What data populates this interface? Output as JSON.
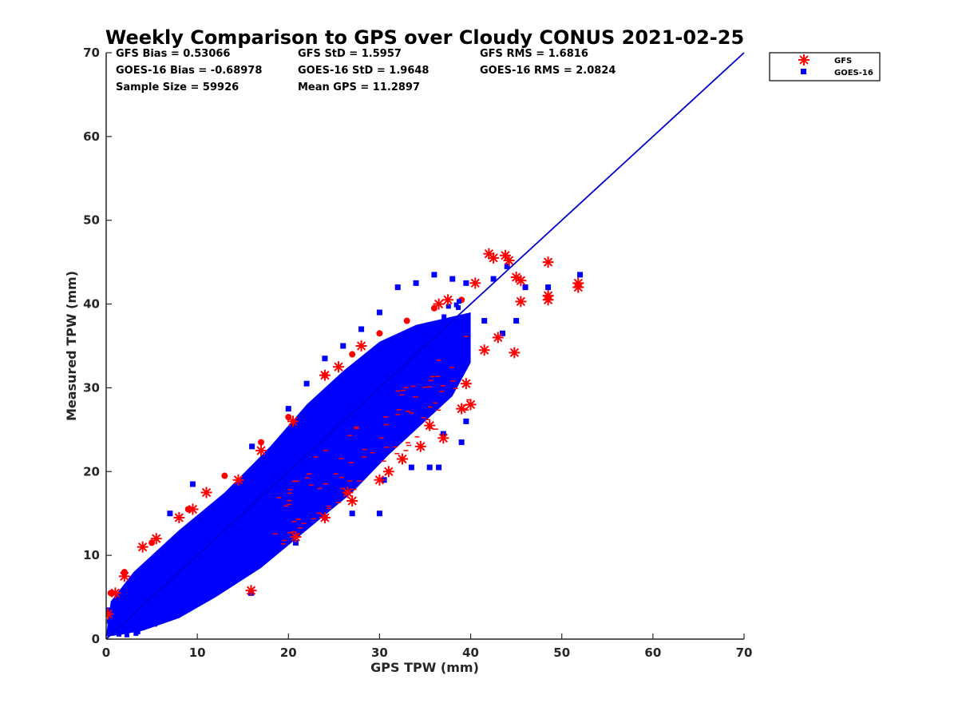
{
  "chart_data": {
    "type": "scatter",
    "title": "Weekly Comparison to GPS over Cloudy CONUS 2021-02-25",
    "xlabel": "GPS TPW (mm)",
    "ylabel": "Measured TPW (mm)",
    "xlim": [
      0,
      70
    ],
    "ylim": [
      0,
      70
    ],
    "xticks": [
      0,
      10,
      20,
      30,
      40,
      50,
      60,
      70
    ],
    "yticks": [
      0,
      10,
      20,
      30,
      40,
      50,
      60,
      70
    ],
    "grid": false,
    "legend_position": "outside-top-right",
    "stats": [
      [
        "GFS Bias = 0.53066",
        "GFS StD = 1.5957",
        "GFS RMS = 1.6816"
      ],
      [
        "GOES-16 Bias = -0.68978",
        "GOES-16 StD = 1.9648",
        "GOES-16 RMS = 2.0824"
      ],
      [
        "Sample Size = 59926",
        "Mean GPS = 11.2897",
        ""
      ]
    ],
    "one_to_one_line": {
      "x": [
        0,
        70
      ],
      "y": [
        0,
        70
      ],
      "color": "#0000cc"
    },
    "series": [
      {
        "name": "GFS",
        "marker": "asterisk",
        "color": "#ff0000",
        "outliers": [
          [
            42.0,
            46.0
          ],
          [
            42.5,
            45.5
          ],
          [
            43.8,
            45.8
          ],
          [
            44.2,
            45.2
          ],
          [
            48.5,
            45.0
          ],
          [
            51.8,
            42.5
          ],
          [
            51.8,
            42.0
          ],
          [
            48.5,
            41.0
          ],
          [
            48.5,
            40.5
          ],
          [
            45.5,
            40.3
          ],
          [
            45.0,
            43.2
          ],
          [
            45.5,
            42.8
          ],
          [
            44.8,
            34.2
          ],
          [
            41.5,
            34.5
          ],
          [
            43.0,
            36.0
          ],
          [
            39.5,
            30.5
          ],
          [
            40.0,
            28.0
          ],
          [
            39.0,
            27.5
          ],
          [
            35.5,
            25.5
          ],
          [
            37.0,
            24.0
          ],
          [
            34.5,
            23.0
          ],
          [
            32.5,
            21.5
          ],
          [
            31.0,
            20.0
          ],
          [
            30.0,
            19.0
          ],
          [
            27.0,
            16.5
          ],
          [
            26.5,
            17.5
          ],
          [
            24.0,
            14.5
          ],
          [
            20.8,
            12.2
          ],
          [
            15.9,
            5.8
          ],
          [
            28.0,
            35.0
          ],
          [
            25.5,
            32.5
          ],
          [
            24.0,
            31.5
          ],
          [
            20.5,
            26.0
          ],
          [
            17.0,
            22.5
          ],
          [
            14.5,
            19.0
          ],
          [
            11.0,
            17.5
          ],
          [
            9.5,
            15.5
          ],
          [
            8.0,
            14.5
          ],
          [
            5.5,
            12.0
          ],
          [
            4.0,
            11.0
          ],
          [
            2.0,
            7.5
          ],
          [
            1.0,
            5.5
          ],
          [
            0.2,
            3.0
          ],
          [
            37.5,
            40.5
          ],
          [
            36.5,
            40.0
          ],
          [
            40.5,
            42.5
          ]
        ]
      },
      {
        "name": "GOES-16",
        "marker": "square",
        "color": "#0000ff",
        "outliers": [
          [
            52.0,
            43.5
          ],
          [
            48.5,
            42.0
          ],
          [
            46.0,
            42.0
          ],
          [
            45.0,
            38.0
          ],
          [
            44.0,
            44.5
          ],
          [
            42.5,
            43.0
          ],
          [
            39.5,
            42.5
          ],
          [
            38.0,
            43.0
          ],
          [
            36.0,
            43.5
          ],
          [
            34.0,
            42.5
          ],
          [
            32.0,
            42.0
          ],
          [
            30.0,
            39.0
          ],
          [
            28.0,
            37.0
          ],
          [
            26.0,
            35.0
          ],
          [
            24.0,
            33.5
          ],
          [
            22.0,
            30.5
          ],
          [
            20.0,
            27.5
          ],
          [
            16.0,
            23.0
          ],
          [
            9.5,
            18.5
          ],
          [
            7.0,
            15.0
          ],
          [
            39.0,
            23.5
          ],
          [
            37.0,
            24.5
          ],
          [
            36.5,
            20.5
          ],
          [
            35.5,
            20.5
          ],
          [
            33.5,
            20.5
          ],
          [
            30.5,
            19.0
          ],
          [
            27.0,
            15.0
          ],
          [
            30.0,
            15.0
          ],
          [
            24.0,
            14.5
          ],
          [
            20.8,
            11.5
          ],
          [
            15.9,
            5.5
          ],
          [
            39.5,
            26.0
          ],
          [
            41.5,
            38.0
          ],
          [
            43.5,
            36.5
          ]
        ]
      }
    ]
  }
}
